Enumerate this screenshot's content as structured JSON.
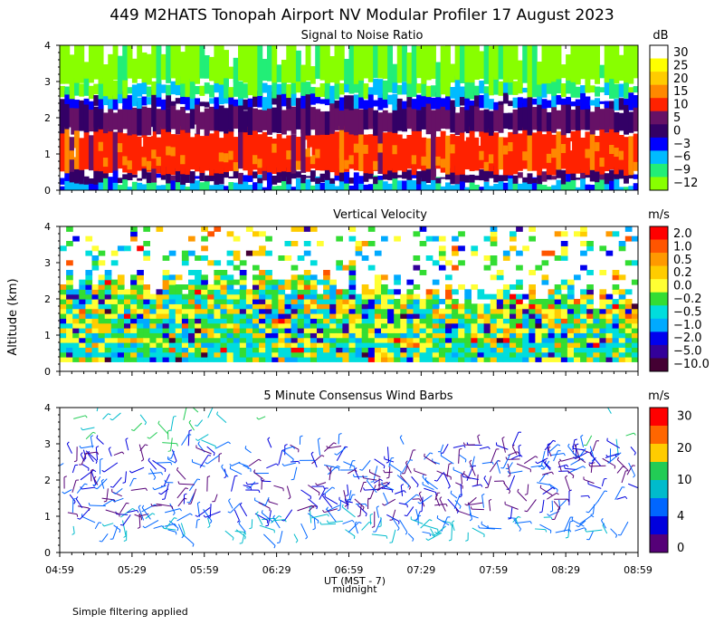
{
  "title": "449 M2HATS Tonopah Airport NV Modular Profiler 17 August 2023",
  "footer_note": "Simple filtering applied",
  "x_axis": {
    "label": "UT (MST - 7)",
    "midnight_label": "midnight",
    "ticks": [
      "04:59",
      "05:29",
      "05:59",
      "06:29",
      "06:59",
      "07:29",
      "07:59",
      "08:29",
      "08:59"
    ]
  },
  "y_axis": {
    "label": "Altitude (km)",
    "ticks": [
      "0",
      "1",
      "2",
      "3",
      "4"
    ],
    "range": [
      0,
      4
    ]
  },
  "chart_data": [
    {
      "type": "heatmap",
      "title": "Signal to Noise Ratio",
      "colorbar": {
        "unit": "dB",
        "labels": [
          "30",
          "25",
          "20",
          "15",
          "10",
          "5",
          "0",
          "−3",
          "−6",
          "−9",
          "−12"
        ],
        "colors": [
          "#ffffff",
          "#ffff00",
          "#ffcc00",
          "#ff8800",
          "#ff2200",
          "#661166",
          "#330066",
          "#0000ff",
          "#00bbff",
          "#22ee77",
          "#88ff00"
        ]
      },
      "layers": [
        {
          "from_km": 0.0,
          "to_km": 0.25,
          "level_db": -6
        },
        {
          "from_km": 0.25,
          "to_km": 0.5,
          "level_db": 0
        },
        {
          "from_km": 0.5,
          "to_km": 1.6,
          "level_db": 10
        },
        {
          "from_km": 1.6,
          "to_km": 2.3,
          "level_db": 3
        },
        {
          "from_km": 2.3,
          "to_km": 2.6,
          "level_db": -3
        },
        {
          "from_km": 2.6,
          "to_km": 3.0,
          "level_db": -9
        },
        {
          "from_km": 3.0,
          "to_km": 4.0,
          "level_db": -12
        }
      ]
    },
    {
      "type": "heatmap",
      "title": "Vertical Velocity",
      "colorbar": {
        "unit": "m/s",
        "labels": [
          "2.0",
          "1.0",
          "0.5",
          "0.2",
          "0.0",
          "−0.2",
          "−0.5",
          "−1.0",
          "−2.0",
          "−5.0",
          "−10.0"
        ],
        "colors": [
          "#ff0000",
          "#ff5500",
          "#ff9900",
          "#ffcc00",
          "#ffff33",
          "#33dd33",
          "#00dddd",
          "#00aaff",
          "#0000ee",
          "#330099",
          "#440033"
        ]
      },
      "range_km": [
        0.0,
        4.0
      ]
    },
    {
      "type": "wind_barbs",
      "title": "5 Minute Consensus Wind Barbs",
      "colorbar": {
        "unit": "m/s",
        "labels": [
          "30",
          "20",
          "10",
          "4",
          "0"
        ],
        "colors": [
          "#ff0000",
          "#ff6600",
          "#ffcc00",
          "#22cc55",
          "#00bbcc",
          "#0066ff",
          "#0000dd",
          "#550077"
        ]
      },
      "range_km": [
        0.5,
        4.0
      ]
    }
  ]
}
